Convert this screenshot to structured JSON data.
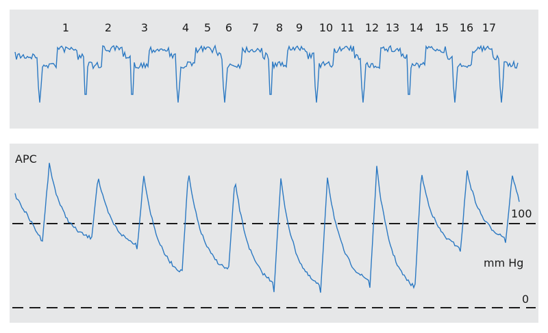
{
  "ecg_panel": {
    "beat_labels": [
      "1",
      "2",
      "3",
      "4",
      "5",
      "6",
      "7",
      "8",
      "9",
      "10",
      "11",
      "12",
      "13",
      "14",
      "15",
      "16",
      "17"
    ]
  },
  "pressure_panel": {
    "label": "APC",
    "upper_reference": "100",
    "unit": "mm Hg",
    "lower_reference": "0"
  }
}
